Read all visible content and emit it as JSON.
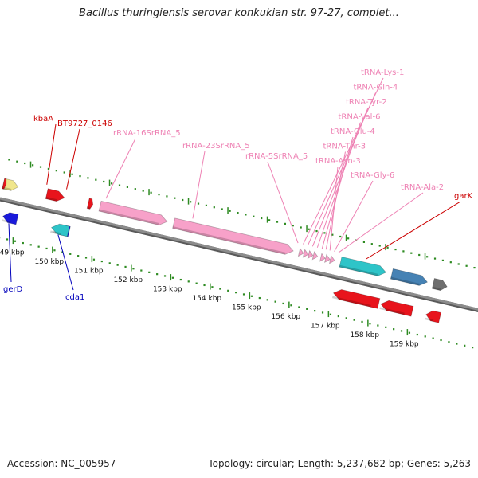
{
  "title": "Bacillus thuringiensis serovar konkukian str. 97-27, complet...",
  "footer": {
    "accession": "Accession: NC_005957",
    "summary": "Topology: circular; Length: 5,237,682 bp; Genes: 5,263"
  },
  "colors": {
    "backbone": "#8c8c8c",
    "tick": "#2e8b22",
    "red": "#e8141c",
    "blue": "#1a1adb",
    "pink": "#f7a1c9",
    "cyan": "#2ec4c8",
    "steel": "#4682b4",
    "khaki": "#f0e68c",
    "grey_gene": "#6e6e6e",
    "label_red": "#cc0000",
    "label_blue": "#0000bb",
    "label_pink": "#ee82b4"
  },
  "scale": {
    "unit": "kbp",
    "ticks": [
      149,
      150,
      151,
      152,
      153,
      154,
      155,
      156,
      157,
      158,
      159
    ],
    "tick_labels": [
      "149 kbp",
      "150 kbp",
      "151 kbp",
      "152 kbp",
      "153 kbp",
      "154 kbp",
      "155 kbp",
      "156 kbp",
      "157 kbp",
      "158 kbp",
      "159 kbp"
    ]
  },
  "features": [
    {
      "kind": "gene",
      "strand": "+",
      "start": 148.45,
      "end": 148.82,
      "color": "khaki"
    },
    {
      "kind": "gene",
      "strand": "+",
      "start": 148.45,
      "end": 148.52,
      "color": "red"
    },
    {
      "kind": "gene",
      "strand": "-",
      "start": 148.62,
      "end": 148.98,
      "color": "blue"
    },
    {
      "kind": "gene",
      "strand": "+",
      "start": 149.55,
      "end": 150.0,
      "color": "red"
    },
    {
      "kind": "gene",
      "strand": "-",
      "start": 149.9,
      "end": 150.3,
      "color": "blue"
    },
    {
      "kind": "gene",
      "strand": "-",
      "start": 149.85,
      "end": 150.28,
      "color": "cyan"
    },
    {
      "kind": "gene",
      "strand": "+",
      "start": 150.6,
      "end": 150.72,
      "color": "red"
    },
    {
      "kind": "rrna",
      "strand": "+",
      "start": 150.9,
      "end": 152.6,
      "color": "pink"
    },
    {
      "kind": "rrna",
      "strand": "+",
      "start": 152.77,
      "end": 155.8,
      "color": "pink"
    },
    {
      "kind": "trna",
      "strand": "+",
      "start": 155.95,
      "end": 156.06,
      "color": "pink"
    },
    {
      "kind": "trna",
      "strand": "+",
      "start": 156.07,
      "end": 156.18,
      "color": "pink"
    },
    {
      "kind": "trna",
      "strand": "+",
      "start": 156.19,
      "end": 156.3,
      "color": "pink"
    },
    {
      "kind": "trna",
      "strand": "+",
      "start": 156.31,
      "end": 156.42,
      "color": "pink"
    },
    {
      "kind": "trna",
      "strand": "+",
      "start": 156.5,
      "end": 156.61,
      "color": "pink"
    },
    {
      "kind": "trna",
      "strand": "+",
      "start": 156.62,
      "end": 156.73,
      "color": "pink"
    },
    {
      "kind": "trna",
      "strand": "+",
      "start": 156.74,
      "end": 156.85,
      "color": "pink"
    },
    {
      "kind": "gene",
      "strand": "+",
      "start": 157.0,
      "end": 158.15,
      "color": "cyan"
    },
    {
      "kind": "gene",
      "strand": "-",
      "start": 157.0,
      "end": 158.15,
      "color": "red"
    },
    {
      "kind": "gene",
      "strand": "+",
      "start": 158.3,
      "end": 159.2,
      "color": "steel"
    },
    {
      "kind": "gene",
      "strand": "-",
      "start": 158.2,
      "end": 159.0,
      "color": "red"
    },
    {
      "kind": "gene",
      "strand": "+",
      "start": 159.35,
      "end": 159.7,
      "color": "grey_gene"
    },
    {
      "kind": "gene",
      "strand": "-",
      "start": 159.35,
      "end": 159.7,
      "color": "red"
    }
  ],
  "labels": [
    {
      "text": "kbaA",
      "color": "label_red",
      "pos": 149.5,
      "side": "top"
    },
    {
      "text": "BT9727_0146",
      "color": "label_red",
      "pos": 150.0,
      "side": "top"
    },
    {
      "text": "rRNA-16SrRNA_5",
      "color": "label_pink",
      "pos": 151.0,
      "side": "top"
    },
    {
      "text": "rRNA-23SrRNA_5",
      "color": "label_pink",
      "pos": 153.2,
      "side": "top"
    },
    {
      "text": "rRNA-5SrRNA_5",
      "color": "label_pink",
      "pos": 155.87,
      "side": "top"
    },
    {
      "text": "tRNA-Lys-1",
      "color": "label_pink",
      "pos": 156.0,
      "side": "top"
    },
    {
      "text": "tRNA-Gln-4",
      "color": "label_pink",
      "pos": 156.12,
      "side": "top"
    },
    {
      "text": "tRNA-Tyr-2",
      "color": "label_pink",
      "pos": 156.24,
      "side": "top"
    },
    {
      "text": "tRNA-Val-6",
      "color": "label_pink",
      "pos": 156.36,
      "side": "top"
    },
    {
      "text": "tRNA-Glu-4",
      "color": "label_pink",
      "pos": 156.48,
      "side": "top"
    },
    {
      "text": "tRNA-Thr-3",
      "color": "label_pink",
      "pos": 156.58,
      "side": "top"
    },
    {
      "text": "tRNA-Asn-3",
      "color": "label_pink",
      "pos": 156.68,
      "side": "top"
    },
    {
      "text": "tRNA-Gly-6",
      "color": "label_pink",
      "pos": 156.79,
      "side": "top"
    },
    {
      "text": "tRNA-Ala-2",
      "color": "label_pink",
      "pos": 156.9,
      "side": "top"
    },
    {
      "text": "garK",
      "color": "label_red",
      "pos": 157.6,
      "side": "top"
    },
    {
      "text": "gerD",
      "color": "label_blue",
      "pos": 148.8,
      "side": "bottom"
    },
    {
      "text": "cda1",
      "color": "label_blue",
      "pos": 150.05,
      "side": "bottom"
    }
  ]
}
